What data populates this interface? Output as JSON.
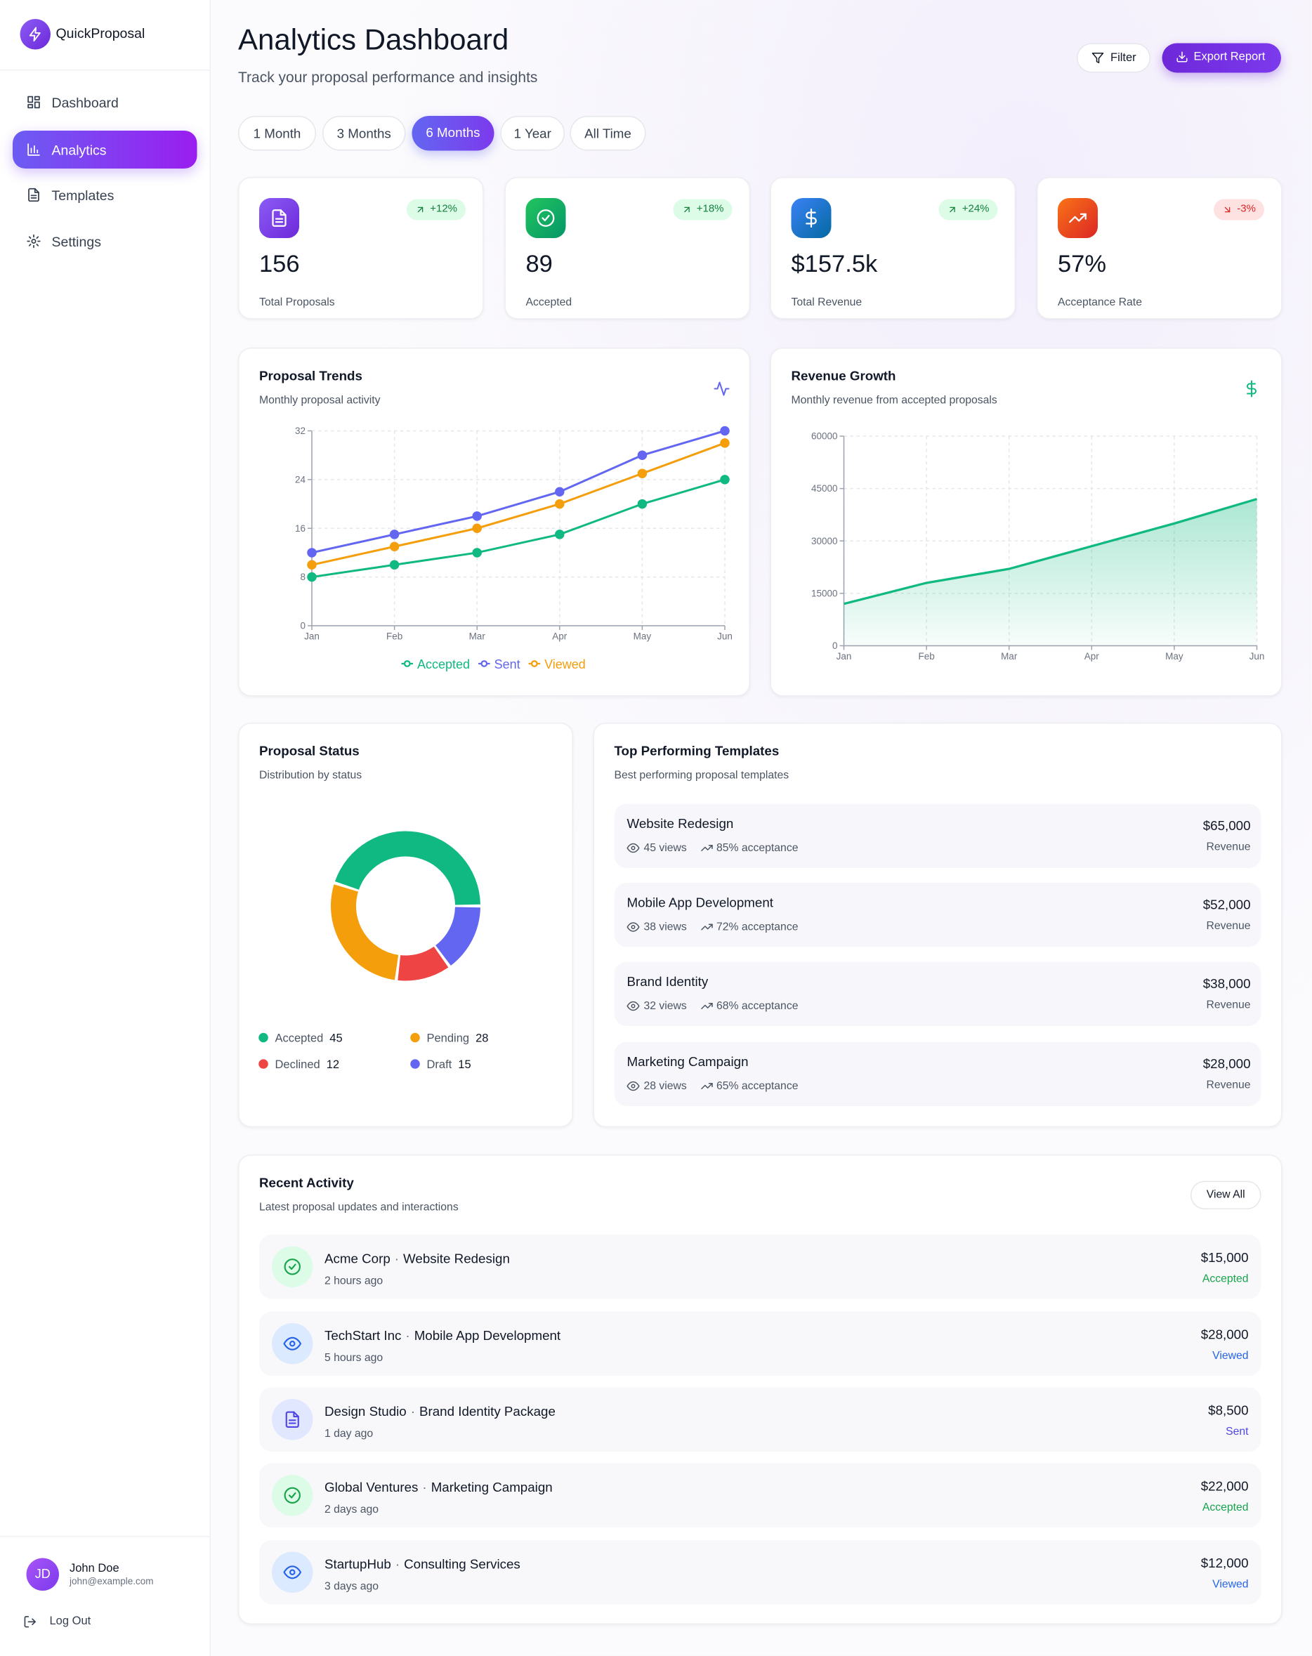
{
  "sidebar": {
    "brand": "QuickProposal",
    "nav": [
      "Dashboard",
      "Analytics",
      "Templates",
      "Settings"
    ],
    "user": {
      "initials": "JD",
      "name": "John Doe",
      "email": "john@example.com"
    },
    "logout": "Log Out"
  },
  "header": {
    "title": "Analytics Dashboard",
    "subtitle": "Track your proposal performance and insights",
    "filter": "Filter",
    "export": "Export Report"
  },
  "periods": [
    "1 Month",
    "3 Months",
    "6 Months",
    "1 Year",
    "All Time"
  ],
  "stats": [
    {
      "value": "156",
      "label": "Total Proposals",
      "change": "+12%"
    },
    {
      "value": "89",
      "label": "Accepted",
      "change": "+18%"
    },
    {
      "value": "$157.5k",
      "label": "Total Revenue",
      "change": "+24%"
    },
    {
      "value": "57%",
      "label": "Acceptance Rate",
      "change": "-3%"
    }
  ],
  "chart_data": [
    {
      "type": "line",
      "title": "Proposal Trends",
      "subtitle": "Monthly proposal activity",
      "categories": [
        "Jan",
        "Feb",
        "Mar",
        "Apr",
        "May",
        "Jun"
      ],
      "ylim": [
        0,
        32
      ],
      "yticks": [
        0,
        8,
        16,
        24,
        32
      ],
      "grid": true,
      "series": [
        {
          "name": "Accepted",
          "color": "#10b981",
          "values": [
            8,
            10,
            12,
            15,
            20,
            24
          ]
        },
        {
          "name": "Sent",
          "color": "#6366f1",
          "values": [
            12,
            15,
            18,
            22,
            28,
            32
          ]
        },
        {
          "name": "Viewed",
          "color": "#f59e0b",
          "values": [
            10,
            13,
            16,
            20,
            25,
            30
          ]
        }
      ]
    },
    {
      "type": "area",
      "title": "Revenue Growth",
      "subtitle": "Monthly revenue from accepted proposals",
      "categories": [
        "Jan",
        "Feb",
        "Mar",
        "Apr",
        "May",
        "Jun"
      ],
      "values": [
        12000,
        18000,
        22000,
        28500,
        35000,
        42000
      ],
      "color": "#10b981",
      "ylim": [
        0,
        60000
      ],
      "yticks": [
        0,
        15000,
        30000,
        45000,
        60000
      ],
      "grid": true
    },
    {
      "type": "pie",
      "title": "Proposal Status",
      "subtitle": "Distribution by status",
      "categories": [
        "Accepted",
        "Pending",
        "Declined",
        "Draft"
      ],
      "values": [
        45,
        28,
        12,
        15
      ],
      "colors": [
        "#10b981",
        "#f59e0b",
        "#ef4444",
        "#6366f1"
      ]
    }
  ],
  "templates": {
    "title": "Top Performing Templates",
    "subtitle": "Best performing proposal templates",
    "items": [
      {
        "name": "Website Redesign",
        "views": "45 views",
        "acceptance": "85% acceptance",
        "revenue": "$65,000",
        "revenue_label": "Revenue"
      },
      {
        "name": "Mobile App Development",
        "views": "38 views",
        "acceptance": "72% acceptance",
        "revenue": "$52,000",
        "revenue_label": "Revenue"
      },
      {
        "name": "Brand Identity",
        "views": "32 views",
        "acceptance": "68% acceptance",
        "revenue": "$38,000",
        "revenue_label": "Revenue"
      },
      {
        "name": "Marketing Campaign",
        "views": "28 views",
        "acceptance": "65% acceptance",
        "revenue": "$28,000",
        "revenue_label": "Revenue"
      }
    ]
  },
  "activity": {
    "title": "Recent Activity",
    "subtitle": "Latest proposal updates and interactions",
    "view_all": "View All",
    "separator": "·",
    "items": [
      {
        "client": "Acme Corp",
        "project": "Website Redesign",
        "time": "2 hours ago",
        "amount": "$15,000",
        "status": "Accepted"
      },
      {
        "client": "TechStart Inc",
        "project": "Mobile App Development",
        "time": "5 hours ago",
        "amount": "$28,000",
        "status": "Viewed"
      },
      {
        "client": "Design Studio",
        "project": "Brand Identity Package",
        "time": "1 day ago",
        "amount": "$8,500",
        "status": "Sent"
      },
      {
        "client": "Global Ventures",
        "project": "Marketing Campaign",
        "time": "2 days ago",
        "amount": "$22,000",
        "status": "Accepted"
      },
      {
        "client": "StartupHub",
        "project": "Consulting Services",
        "time": "3 days ago",
        "amount": "$12,000",
        "status": "Viewed"
      }
    ]
  }
}
